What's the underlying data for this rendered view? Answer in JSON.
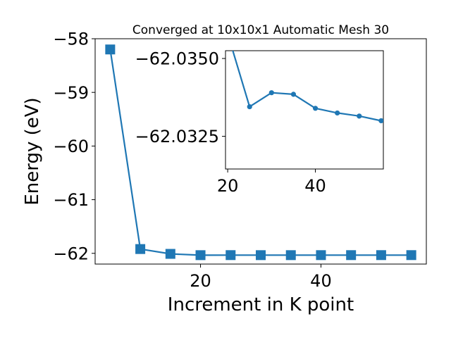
{
  "chart_data": [
    {
      "type": "line",
      "title": "Converged at 10x10x1 Automatic Mesh 30",
      "xlabel": "Increment in K point",
      "ylabel": "Energy (eV)",
      "xlim": [
        2.5,
        57.5
      ],
      "ylim": [
        -62.2,
        -58.0
      ],
      "xticks": [
        20,
        40
      ],
      "yticks": [
        -62,
        -61,
        -60,
        -59,
        -58
      ],
      "xtick_labels": [
        "20",
        "40"
      ],
      "ytick_labels": [
        "−62",
        "−61",
        "−60",
        "−59",
        "−58"
      ],
      "grid": false,
      "series": [
        {
          "color": "#1f77b4",
          "marker": "square",
          "x": [
            5,
            10,
            15,
            20,
            25,
            30,
            35,
            40,
            45,
            50,
            55
          ],
          "y": [
            -58.2,
            -61.92,
            -62.01,
            -62.034,
            -62.0332,
            -62.0337,
            -62.0337,
            -62.0334,
            -62.0333,
            -62.0332,
            -62.0331
          ]
        }
      ]
    },
    {
      "type": "line",
      "title": "",
      "xlabel": "",
      "ylabel": "",
      "xlim": [
        19.5,
        55.5
      ],
      "ylim": [
        -62.03145,
        -62.03525
      ],
      "xticks": [
        20,
        40
      ],
      "yticks": [
        -62.035,
        -62.0325
      ],
      "xtick_labels": [
        "20",
        "40"
      ],
      "ytick_labels": [
        "−62.0350",
        "−62.0325"
      ],
      "grid": false,
      "series": [
        {
          "color": "#1f77b4",
          "marker": "circle",
          "x": [
            20,
            25,
            30,
            35,
            40,
            45,
            50,
            55
          ],
          "y": [
            -62.0358,
            -62.03345,
            -62.0339,
            -62.03385,
            -62.0334,
            -62.03325,
            -62.03315,
            -62.033
          ]
        }
      ]
    }
  ]
}
